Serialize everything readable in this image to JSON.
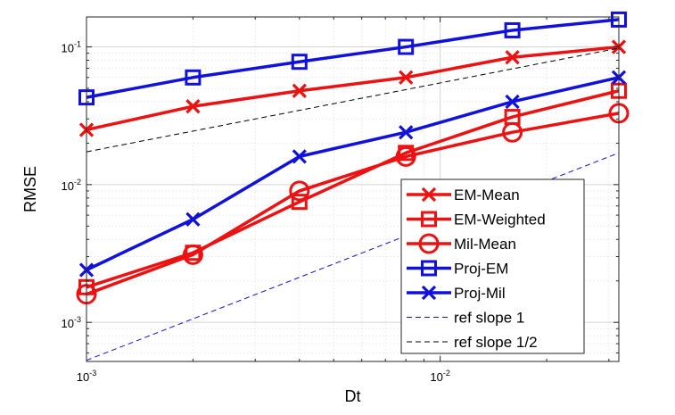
{
  "chart_data": {
    "type": "line",
    "xlabel": "Dt",
    "ylabel": "RMSE",
    "xscale": "log",
    "yscale": "log",
    "xlim": [
      0.001,
      0.032
    ],
    "ylim": [
      0.00052,
      0.165
    ],
    "grid": true,
    "legend_position": "bottom-right",
    "x_ticks": [
      {
        "value": 0.001,
        "base": "10",
        "exp": "-3"
      },
      {
        "value": 0.01,
        "base": "10",
        "exp": "-2"
      }
    ],
    "y_ticks": [
      {
        "value": 0.001,
        "base": "10",
        "exp": "-3"
      },
      {
        "value": 0.01,
        "base": "10",
        "exp": "-2"
      },
      {
        "value": 0.1,
        "base": "10",
        "exp": "-1"
      }
    ],
    "series": [
      {
        "name": "EM-Mean",
        "color": "#ee1111",
        "marker": "x",
        "style": "solid",
        "x": [
          0.001,
          0.002,
          0.004,
          0.008,
          0.016,
          0.032
        ],
        "y": [
          0.025,
          0.037,
          0.048,
          0.06,
          0.084,
          0.1
        ]
      },
      {
        "name": "EM-Weighted",
        "color": "#ee1111",
        "marker": "square",
        "style": "solid",
        "x": [
          0.001,
          0.002,
          0.004,
          0.008,
          0.016,
          0.032
        ],
        "y": [
          0.0018,
          0.0032,
          0.0075,
          0.017,
          0.031,
          0.048
        ]
      },
      {
        "name": "Mil-Mean",
        "color": "#ee1111",
        "marker": "circle",
        "style": "solid",
        "x": [
          0.001,
          0.002,
          0.004,
          0.008,
          0.016,
          0.032
        ],
        "y": [
          0.0016,
          0.0031,
          0.009,
          0.016,
          0.024,
          0.033
        ]
      },
      {
        "name": "Proj-EM",
        "color": "#1111dd",
        "marker": "square",
        "style": "solid",
        "x": [
          0.001,
          0.002,
          0.004,
          0.008,
          0.016,
          0.032
        ],
        "y": [
          0.043,
          0.06,
          0.078,
          0.1,
          0.132,
          0.158
        ]
      },
      {
        "name": "Proj-Mil",
        "color": "#1111dd",
        "marker": "x",
        "style": "solid",
        "x": [
          0.001,
          0.002,
          0.004,
          0.008,
          0.016,
          0.032
        ],
        "y": [
          0.0024,
          0.0056,
          0.016,
          0.024,
          0.04,
          0.06
        ]
      },
      {
        "name": "ref slope 1",
        "color": "#1111dd",
        "marker": "none",
        "style": "dashed",
        "x": [
          0.001,
          0.032
        ],
        "y": [
          0.00053,
          0.017
        ]
      },
      {
        "name": "ref slope 1/2",
        "color": "#000000",
        "marker": "none",
        "style": "dashed",
        "x": [
          0.001,
          0.032
        ],
        "y": [
          0.0173,
          0.098
        ]
      }
    ]
  }
}
